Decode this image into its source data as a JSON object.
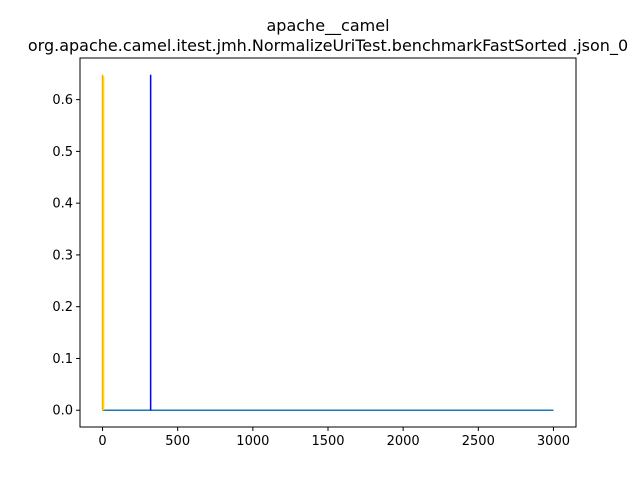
{
  "chart_data": {
    "type": "line",
    "title": "apache__camel",
    "subtitle": "org.apache.camel.itest.jmh.NormalizeUriTest.benchmarkFastSorted .json_0",
    "xlabel": "",
    "ylabel": "",
    "xlim": [
      -150,
      3150
    ],
    "ylim": [
      -0.0324,
      0.6804
    ],
    "xticks": [
      0,
      500,
      1000,
      1500,
      2000,
      2500,
      3000
    ],
    "yticks": [
      0.0,
      0.1,
      0.2,
      0.3,
      0.4,
      0.5,
      0.6
    ],
    "xtick_labels": [
      "0",
      "500",
      "1000",
      "1500",
      "2000",
      "2500",
      "3000"
    ],
    "ytick_labels": [
      "0.0",
      "0.1",
      "0.2",
      "0.3",
      "0.4",
      "0.5",
      "0.6"
    ],
    "grid": false,
    "legend": "none",
    "series": [
      {
        "color": "#1f77b4",
        "x": [
          0,
          3000
        ],
        "y": [
          0.0,
          0.0
        ]
      }
    ],
    "vlines": [
      {
        "x": 0,
        "ymin": 0.0,
        "ymax": 0.648,
        "color": "#ffa500"
      },
      {
        "x": 7,
        "ymin": 0.0,
        "ymax": 0.645,
        "color": "#ffd700"
      },
      {
        "x": 320,
        "ymin": 0.0,
        "ymax": 0.648,
        "color": "#0000ff"
      }
    ]
  }
}
